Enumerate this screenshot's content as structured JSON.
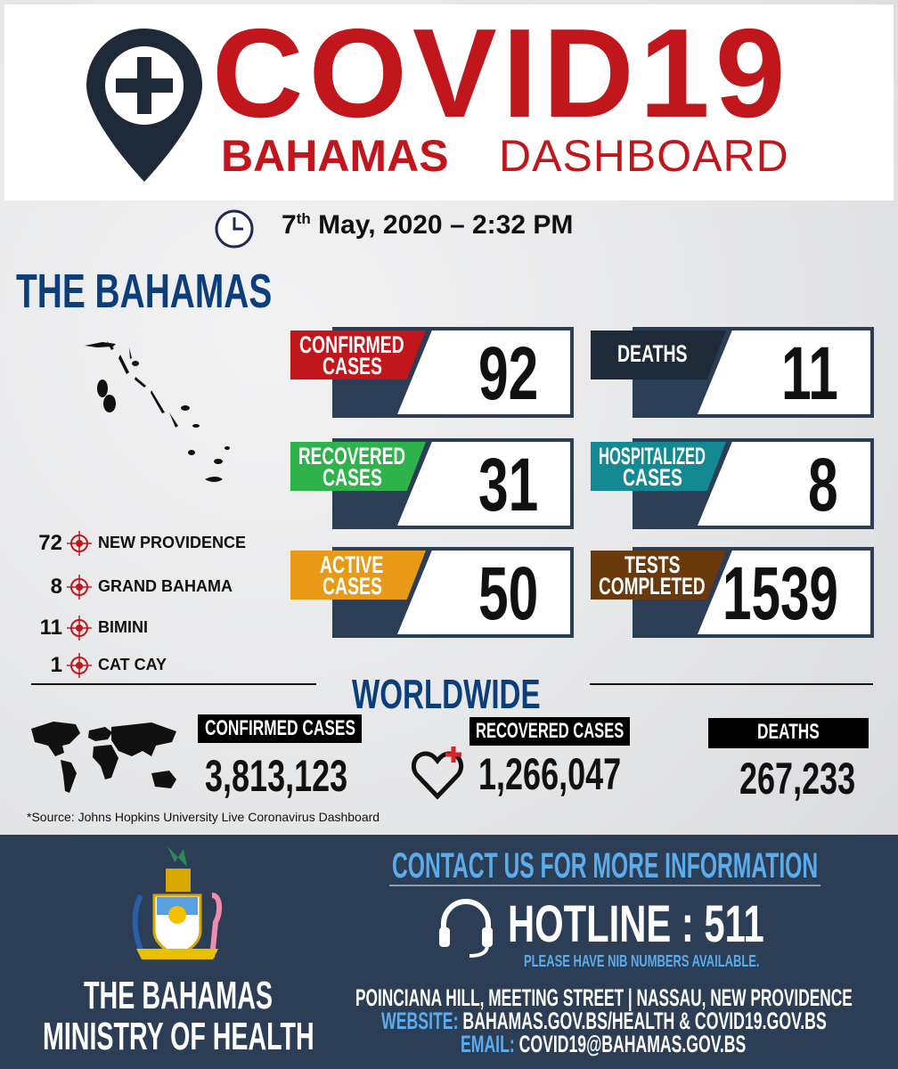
{
  "header": {
    "title": "COVID19",
    "subtitle_bold": "BAHAMAS",
    "subtitle_light": "DASHBOARD",
    "logo_icon": "location-pin-plus-icon"
  },
  "timestamp": {
    "day": "7",
    "day_suffix": "th",
    "rest": "May, 2020 – 2:32 PM",
    "icon": "clock-icon"
  },
  "bahamas": {
    "title": "THE BAHAMAS",
    "cards": [
      {
        "label1": "CONFIRMED",
        "label2": "CASES",
        "value": "92",
        "color": "#c0161c"
      },
      {
        "label1": "DEATHS",
        "label2": "",
        "value": "11",
        "color": "#1f2a38"
      },
      {
        "label1": "RECOVERED",
        "label2": "CASES",
        "value": "31",
        "color": "#2db34a"
      },
      {
        "label1": "HOSPITALIZED",
        "label2": "CASES",
        "value": "8",
        "color": "#138a93"
      },
      {
        "label1": "ACTIVE",
        "label2": "CASES",
        "value": "50",
        "color": "#e89a16"
      },
      {
        "label1": "TESTS",
        "label2": "COMPLETED",
        "value": "1539",
        "color": "#6b3a0c"
      }
    ],
    "islands": [
      {
        "count": "72",
        "name": "NEW PROVIDENCE"
      },
      {
        "count": "8",
        "name": "GRAND BAHAMA"
      },
      {
        "count": "11",
        "name": "BIMINI"
      },
      {
        "count": "1",
        "name": "CAT CAY"
      }
    ]
  },
  "worldwide": {
    "title": "WORLDWIDE",
    "confirmed_label": "CONFIRMED CASES",
    "confirmed": "3,813,123",
    "recovered_label": "RECOVERED CASES",
    "recovered": "1,266,047",
    "deaths_label": "DEATHS",
    "deaths": "267,233",
    "source": "*Source: Johns Hopkins University Live Coronavirus Dashboard"
  },
  "footer": {
    "ministry1": "THE BAHAMAS",
    "ministry2": "MINISTRY OF HEALTH",
    "contact": "CONTACT US FOR MORE INFORMATION",
    "hotline": "HOTLINE : 511",
    "nib": "PLEASE HAVE NIB NUMBERS AVAILABLE.",
    "address": "POINCIANA HILL, MEETING STREET  |  NASSAU, NEW PROVIDENCE",
    "website_label": "WEBSITE:",
    "website": "BAHAMAS.GOV.BS/HEALTH  &  COVID19.GOV.BS",
    "email_label": "EMAIL:",
    "email": "COVID19@BAHAMAS.GOV.BS"
  },
  "colors": {
    "red": "#c0161c",
    "navy": "#2c3e55",
    "blue_title": "#0b3e7a",
    "link_blue": "#5aacec"
  }
}
